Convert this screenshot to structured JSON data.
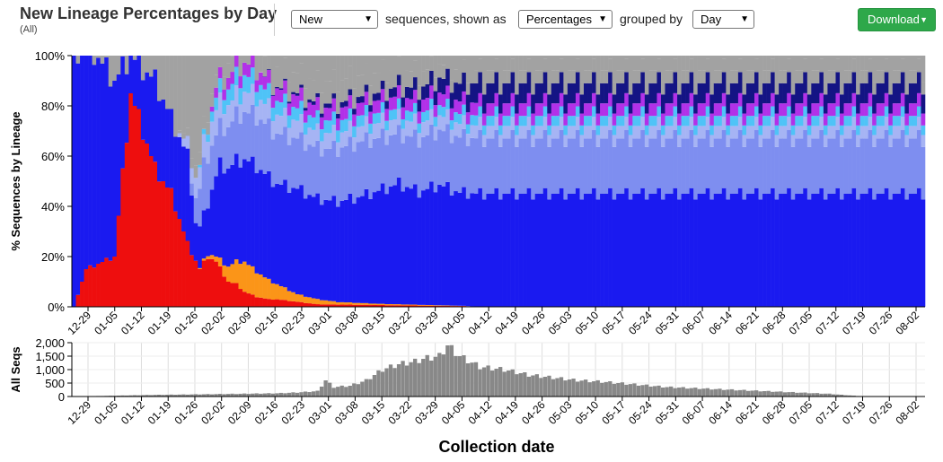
{
  "header": {
    "title": "New Lineage Percentages by Day",
    "subtitle": "(All)",
    "filter_select": "New",
    "label_sequences": "sequences, shown as",
    "display_select": "Percentages",
    "label_grouped": "grouped by",
    "group_select": "Day",
    "download_label": "Download"
  },
  "colors": {
    "gray": "#a2a2a2",
    "blue_main": "#1a1af0",
    "blue_alt": "#2f2ff8",
    "blue_light": "#7e8ef0",
    "lavender": "#a6b4f4",
    "cyan": "#4fc3f7",
    "purple": "#b231e8",
    "navy": "#141484",
    "red": "#ee0e0e",
    "orange": "#fb9518",
    "bar_gray": "#888888"
  },
  "chart_data": [
    {
      "type": "bar",
      "subtype": "stacked-percent",
      "ylabel": "% Sequences by Lineage",
      "yticks": [
        "0%",
        "20%",
        "40%",
        "60%",
        "80%",
        "100%"
      ],
      "ylim": [
        0,
        100
      ],
      "x_tick_labels": [
        "12-29",
        "01-05",
        "01-12",
        "01-19",
        "01-26",
        "02-02",
        "02-09",
        "02-16",
        "02-23",
        "03-01",
        "03-08",
        "03-15",
        "03-22",
        "03-29",
        "04-05",
        "04-12",
        "04-19",
        "04-26",
        "05-03",
        "05-10",
        "05-17",
        "05-24",
        "05-31",
        "06-07",
        "06-14",
        "06-21",
        "06-28",
        "07-05",
        "07-12",
        "07-19",
        "07-26",
        "08-02"
      ],
      "series": [
        {
          "color_key": "red",
          "anchors": [
            [
              0,
              0
            ],
            [
              3,
              15
            ],
            [
              10,
              20
            ],
            [
              14,
              85
            ],
            [
              17,
              70
            ],
            [
              20,
              55
            ],
            [
              24,
              45
            ],
            [
              28,
              25
            ],
            [
              31,
              15
            ],
            [
              33,
              20
            ],
            [
              35,
              18
            ],
            [
              38,
              10
            ],
            [
              40,
              9
            ],
            [
              42,
              6
            ],
            [
              45,
              4
            ],
            [
              48,
              3
            ],
            [
              50,
              3
            ],
            [
              55,
              2
            ],
            [
              60,
              1
            ],
            [
              70,
              0.8
            ],
            [
              80,
              0.6
            ],
            [
              90,
              0.4
            ],
            [
              96,
              0.3
            ],
            [
              100,
              0
            ]
          ]
        },
        {
          "color_key": "orange",
          "anchors": [
            [
              0,
              0
            ],
            [
              30,
              0
            ],
            [
              35,
              2
            ],
            [
              38,
              6
            ],
            [
              42,
              12
            ],
            [
              45,
              10
            ],
            [
              50,
              6
            ],
            [
              55,
              3
            ],
            [
              60,
              2
            ],
            [
              65,
              1
            ],
            [
              75,
              0.5
            ],
            [
              100,
              0
            ]
          ]
        },
        {
          "color_key": "blue_main",
          "anchors": [
            [
              0,
              100
            ],
            [
              10,
              70
            ],
            [
              14,
              15
            ],
            [
              17,
              25
            ],
            [
              20,
              35
            ],
            [
              24,
              30
            ],
            [
              28,
              35
            ],
            [
              30,
              15
            ],
            [
              33,
              20
            ],
            [
              36,
              38
            ],
            [
              40,
              40
            ],
            [
              45,
              42
            ],
            [
              50,
              40
            ],
            [
              55,
              42
            ],
            [
              60,
              40
            ],
            [
              65,
              40
            ],
            [
              70,
              42
            ],
            [
              75,
              45
            ],
            [
              80,
              48
            ],
            [
              85,
              45
            ],
            [
              90,
              48
            ],
            [
              95,
              45
            ],
            [
              100,
              45
            ]
          ]
        },
        {
          "color_key": "blue_light",
          "anchors": [
            [
              0,
              0
            ],
            [
              28,
              0
            ],
            [
              32,
              20
            ],
            [
              36,
              15
            ],
            [
              40,
              18
            ],
            [
              45,
              20
            ],
            [
              50,
              20
            ],
            [
              60,
              20
            ],
            [
              70,
              22
            ],
            [
              80,
              20
            ],
            [
              90,
              22
            ],
            [
              100,
              22
            ]
          ]
        },
        {
          "color_key": "lavender",
          "anchors": [
            [
              0,
              0
            ],
            [
              25,
              0
            ],
            [
              30,
              8
            ],
            [
              35,
              10
            ],
            [
              40,
              8
            ],
            [
              45,
              8
            ],
            [
              55,
              7
            ],
            [
              65,
              6
            ],
            [
              75,
              6
            ],
            [
              85,
              6
            ],
            [
              100,
              5
            ]
          ]
        },
        {
          "color_key": "cyan",
          "anchors": [
            [
              0,
              0
            ],
            [
              30,
              0
            ],
            [
              35,
              5
            ],
            [
              40,
              7
            ],
            [
              45,
              6
            ],
            [
              55,
              5
            ],
            [
              65,
              5
            ],
            [
              75,
              4
            ],
            [
              85,
              4
            ],
            [
              100,
              4
            ]
          ]
        },
        {
          "color_key": "purple",
          "anchors": [
            [
              0,
              0
            ],
            [
              33,
              0
            ],
            [
              35,
              4
            ],
            [
              40,
              5
            ],
            [
              50,
              5
            ],
            [
              60,
              5
            ],
            [
              70,
              5
            ],
            [
              80,
              5
            ],
            [
              90,
              5
            ],
            [
              100,
              5
            ]
          ]
        },
        {
          "color_key": "navy",
          "anchors": [
            [
              0,
              0
            ],
            [
              45,
              0
            ],
            [
              55,
              1
            ],
            [
              65,
              2
            ],
            [
              75,
              3
            ],
            [
              85,
              5
            ],
            [
              95,
              7
            ],
            [
              100,
              8
            ]
          ]
        },
        {
          "color_key": "gray",
          "anchors": [
            [
              0,
              0
            ],
            [
              25,
              0
            ],
            [
              30,
              5
            ],
            [
              35,
              5
            ],
            [
              45,
              8
            ],
            [
              55,
              8
            ],
            [
              65,
              9
            ],
            [
              75,
              8
            ],
            [
              85,
              6
            ],
            [
              95,
              5
            ],
            [
              100,
              5
            ]
          ]
        }
      ]
    },
    {
      "type": "bar",
      "ylabel": "All Seqs",
      "yticks": [
        "0",
        "500",
        "1,000",
        "1,500",
        "2,000"
      ],
      "ylim": [
        0,
        2000
      ],
      "xlabel": "Collection date",
      "x_tick_labels": [
        "12-29",
        "01-05",
        "01-12",
        "01-19",
        "01-26",
        "02-02",
        "02-09",
        "02-16",
        "02-23",
        "03-01",
        "03-08",
        "03-15",
        "03-22",
        "03-29",
        "04-05",
        "04-12",
        "04-19",
        "04-26",
        "05-03",
        "05-10",
        "05-17",
        "05-24",
        "05-31",
        "06-07",
        "06-14",
        "06-21",
        "06-28",
        "07-05",
        "07-12",
        "07-19",
        "07-26",
        "08-02"
      ],
      "anchors": [
        [
          0,
          0
        ],
        [
          10,
          30
        ],
        [
          20,
          60
        ],
        [
          30,
          80
        ],
        [
          40,
          100
        ],
        [
          50,
          120
        ],
        [
          55,
          150
        ],
        [
          60,
          200
        ],
        [
          62,
          600
        ],
        [
          64,
          350
        ],
        [
          68,
          400
        ],
        [
          72,
          600
        ],
        [
          76,
          1000
        ],
        [
          80,
          1200
        ],
        [
          84,
          1300
        ],
        [
          86,
          1400
        ],
        [
          90,
          1500
        ],
        [
          92,
          1900
        ],
        [
          95,
          1500
        ],
        [
          100,
          1100
        ],
        [
          106,
          1000
        ],
        [
          112,
          800
        ],
        [
          118,
          700
        ],
        [
          124,
          600
        ],
        [
          130,
          550
        ],
        [
          138,
          450
        ],
        [
          146,
          350
        ],
        [
          154,
          300
        ],
        [
          162,
          250
        ],
        [
          170,
          200
        ],
        [
          178,
          150
        ],
        [
          186,
          100
        ],
        [
          190,
          50
        ],
        [
          195,
          0
        ],
        [
          210,
          0
        ]
      ]
    }
  ]
}
